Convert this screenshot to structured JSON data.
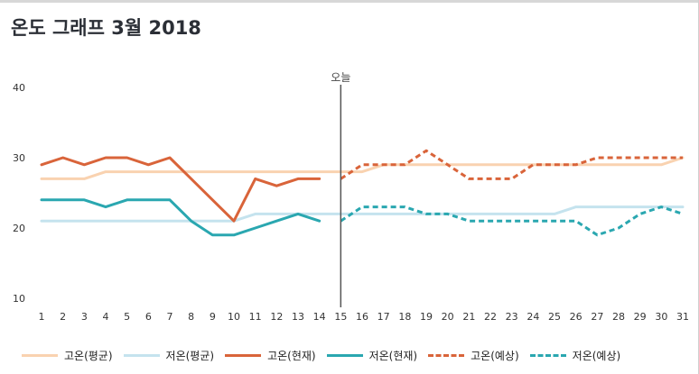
{
  "title": "온도 그래프 3월 2018",
  "chart_data": {
    "type": "line",
    "x": [
      1,
      2,
      3,
      4,
      5,
      6,
      7,
      8,
      9,
      10,
      11,
      12,
      13,
      14,
      15,
      16,
      17,
      18,
      19,
      20,
      21,
      22,
      23,
      24,
      25,
      26,
      27,
      28,
      29,
      30,
      31
    ],
    "ylim": [
      10,
      40
    ],
    "yticks": [
      10,
      20,
      30,
      40
    ],
    "today_marker": {
      "x": 15,
      "label": "오늘"
    },
    "series": [
      {
        "name": "고온(평균)",
        "color": "#f9d2b0",
        "style": "solid",
        "x": [
          1,
          2,
          3,
          4,
          5,
          6,
          7,
          8,
          9,
          10,
          11,
          12,
          13,
          14,
          15,
          16,
          17,
          18,
          19,
          20,
          21,
          22,
          23,
          24,
          25,
          26,
          27,
          28,
          29,
          30,
          31
        ],
        "values": [
          27,
          27,
          27,
          28,
          28,
          28,
          28,
          28,
          28,
          28,
          28,
          28,
          28,
          28,
          28,
          28,
          29,
          29,
          29,
          29,
          29,
          29,
          29,
          29,
          29,
          29,
          29,
          29,
          29,
          29,
          30
        ]
      },
      {
        "name": "저온(평균)",
        "color": "#c5e3ee",
        "style": "solid",
        "x": [
          1,
          2,
          3,
          4,
          5,
          6,
          7,
          8,
          9,
          10,
          11,
          12,
          13,
          14,
          15,
          16,
          17,
          18,
          19,
          20,
          21,
          22,
          23,
          24,
          25,
          26,
          27,
          28,
          29,
          30,
          31
        ],
        "values": [
          21,
          21,
          21,
          21,
          21,
          21,
          21,
          21,
          21,
          21,
          22,
          22,
          22,
          22,
          22,
          22,
          22,
          22,
          22,
          22,
          22,
          22,
          22,
          22,
          22,
          23,
          23,
          23,
          23,
          23,
          23
        ]
      },
      {
        "name": "고온(현재)",
        "color": "#d9643a",
        "style": "solid",
        "x": [
          1,
          2,
          3,
          4,
          5,
          6,
          7,
          8,
          9,
          10,
          11,
          12,
          13,
          14
        ],
        "values": [
          29,
          30,
          29,
          30,
          30,
          29,
          30,
          27,
          24,
          21,
          27,
          26,
          27,
          27
        ]
      },
      {
        "name": "저온(현재)",
        "color": "#2aa7b0",
        "style": "solid",
        "x": [
          1,
          2,
          3,
          4,
          5,
          6,
          7,
          8,
          9,
          10,
          11,
          12,
          13,
          14
        ],
        "values": [
          24,
          24,
          24,
          23,
          24,
          24,
          24,
          21,
          19,
          19,
          20,
          21,
          22,
          21
        ]
      },
      {
        "name": "고온(예상)",
        "color": "#d9643a",
        "style": "dashed",
        "x": [
          15,
          16,
          17,
          18,
          19,
          20,
          21,
          22,
          23,
          24,
          25,
          26,
          27,
          28,
          29,
          30,
          31
        ],
        "values": [
          27,
          29,
          29,
          29,
          31,
          29,
          27,
          27,
          27,
          29,
          29,
          29,
          30,
          30,
          30,
          30,
          30
        ]
      },
      {
        "name": "저온(예상)",
        "color": "#2aa7b0",
        "style": "dashed",
        "x": [
          15,
          16,
          17,
          18,
          19,
          20,
          21,
          22,
          23,
          24,
          25,
          26,
          27,
          28,
          29,
          30,
          31
        ],
        "values": [
          21,
          23,
          23,
          23,
          22,
          22,
          21,
          21,
          21,
          21,
          21,
          21,
          19,
          20,
          22,
          23,
          22
        ]
      }
    ]
  }
}
